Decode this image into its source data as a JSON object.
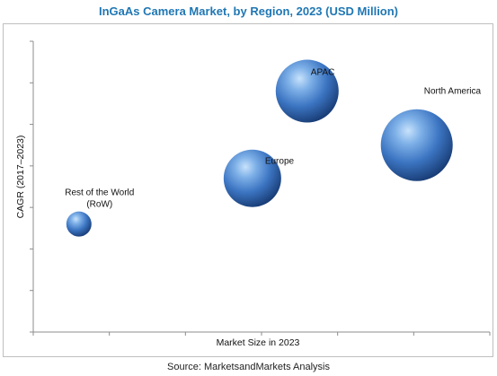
{
  "chart_data": {
    "type": "bubble",
    "title": "InGaAs Camera Market, by Region, 2023 (USD Million)",
    "xlabel": "Market Size in 2023",
    "ylabel": "CAGR (2017–2023)",
    "source": "Source: MarketsandMarkets Analysis",
    "x_ticks": 6,
    "y_ticks": 7,
    "grid": false,
    "series": [
      {
        "label": "North America",
        "x": 4.2,
        "y": 4.5,
        "size": 40,
        "label_pos": "upper-right"
      },
      {
        "label": "APAC",
        "x": 3.0,
        "y": 5.8,
        "size": 35,
        "label_pos": "top"
      },
      {
        "label": "Europe",
        "x": 2.4,
        "y": 3.7,
        "size": 32,
        "label_pos": "right"
      },
      {
        "label": "Rest of the World\n(RoW)",
        "x": 0.5,
        "y": 2.6,
        "size": 14,
        "label_pos": "above"
      }
    ],
    "colors": {
      "bubble_light": "#9ecbf4",
      "bubble_mid": "#3d78c4",
      "bubble_dark": "#17386e",
      "title": "#1f77b4"
    }
  }
}
